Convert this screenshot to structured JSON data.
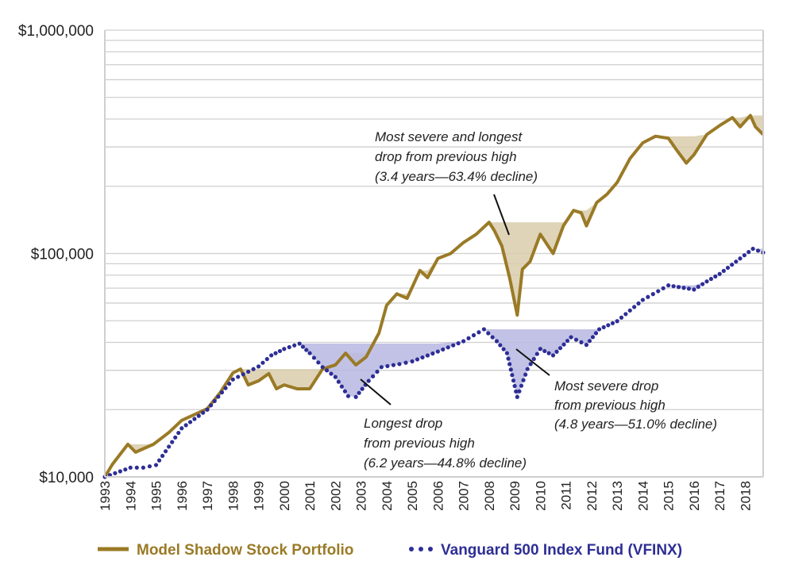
{
  "chart_data": {
    "type": "line",
    "title": "",
    "xlabel": "",
    "ylabel": "",
    "y_scale": "log",
    "ylim": [
      10000,
      1000000
    ],
    "xlim": [
      1993,
      2018.7
    ],
    "grid": true,
    "legend_position": "bottom",
    "y_tick_labels": [
      "$10,000",
      "$100,000",
      "$1,000,000"
    ],
    "y_ticks": [
      10000,
      100000,
      1000000
    ],
    "x_tick_labels": [
      "1993",
      "1994",
      "1995",
      "1996",
      "1997",
      "1998",
      "1999",
      "2000",
      "2001",
      "2002",
      "2003",
      "2004",
      "2005",
      "2006",
      "2007",
      "2008",
      "2009",
      "2010",
      "2011",
      "2012",
      "2013",
      "2014",
      "2015",
      "2016",
      "2017",
      "2018"
    ],
    "series": [
      {
        "name": "Model Shadow Stock Portfolio",
        "style": "solid",
        "color": "#9a7a26",
        "drawdown_fill": "#d9ccab",
        "x": [
          1993.0,
          1993.3,
          1993.9,
          1994.2,
          1994.9,
          1995.5,
          1996.0,
          1997.0,
          1997.5,
          1998.0,
          1998.3,
          1998.6,
          1999.0,
          1999.4,
          1999.7,
          2000.0,
          2000.5,
          2001.0,
          2001.5,
          2002.0,
          2002.4,
          2002.8,
          2003.2,
          2003.7,
          2004.0,
          2004.4,
          2004.8,
          2005.3,
          2005.6,
          2006.0,
          2006.5,
          2007.0,
          2007.5,
          2008.0,
          2008.2,
          2008.5,
          2008.8,
          2009.1,
          2009.3,
          2009.6,
          2010.0,
          2010.5,
          2010.9,
          2011.3,
          2011.6,
          2011.8,
          2012.2,
          2012.6,
          2013.0,
          2013.5,
          2014.0,
          2014.5,
          2015.0,
          2015.3,
          2015.7,
          2016.0,
          2016.5,
          2017.0,
          2017.5,
          2017.8,
          2018.2,
          2018.4,
          2018.7
        ],
        "values": [
          10000,
          11400,
          14000,
          12900,
          14000,
          15800,
          17900,
          20200,
          23800,
          29200,
          30400,
          25800,
          26900,
          29000,
          24800,
          25800,
          24800,
          24800,
          30400,
          31700,
          35800,
          31700,
          34400,
          44000,
          58600,
          66000,
          63000,
          84000,
          78000,
          95000,
          100000,
          112000,
          122000,
          138000,
          127000,
          108000,
          78000,
          53000,
          85000,
          92000,
          122000,
          100000,
          133000,
          156000,
          152000,
          133000,
          169000,
          184000,
          208000,
          266000,
          313000,
          335000,
          328000,
          293000,
          254000,
          277000,
          341000,
          374000,
          406000,
          369000,
          415000,
          369000,
          341000
        ]
      },
      {
        "name": "Vanguard 500 Index Fund (VFINX)",
        "style": "dotted",
        "color": "#2e2e96",
        "drawdown_fill": "#b7b7e2",
        "x": [
          1993.0,
          1994.0,
          1994.5,
          1995.0,
          1996.0,
          1997.0,
          1998.0,
          1999.0,
          1999.5,
          2000.0,
          2000.6,
          2001.0,
          2001.5,
          2002.0,
          2002.5,
          2002.8,
          2003.3,
          2003.8,
          2004.5,
          2005.0,
          2006.0,
          2007.0,
          2007.8,
          2008.3,
          2008.7,
          2009.1,
          2009.5,
          2010.0,
          2010.5,
          2011.2,
          2011.8,
          2012.3,
          2013.0,
          2014.0,
          2015.0,
          2016.0,
          2016.5,
          2017.0,
          2017.8,
          2018.3,
          2018.7
        ],
        "values": [
          10000,
          11000,
          11000,
          11300,
          16500,
          20000,
          27300,
          31200,
          35000,
          37400,
          39500,
          35800,
          31000,
          28000,
          23000,
          22800,
          26900,
          31000,
          32000,
          32900,
          36400,
          40500,
          45800,
          40500,
          35800,
          22800,
          30400,
          37400,
          35000,
          42200,
          39000,
          45800,
          49800,
          62000,
          72000,
          69000,
          75000,
          81000,
          95000,
          105000,
          101000
        ]
      }
    ],
    "annotations": [
      {
        "lines": [
          "Most severe and longest",
          "drop from previous high",
          "(3.4 years—63.4% decline)"
        ]
      },
      {
        "lines": [
          "Longest drop",
          "from previous high",
          "(6.2 years—44.8% decline)"
        ]
      },
      {
        "lines": [
          "Most severe drop",
          "from previous high",
          "(4.8 years—51.0% decline)"
        ]
      }
    ]
  }
}
